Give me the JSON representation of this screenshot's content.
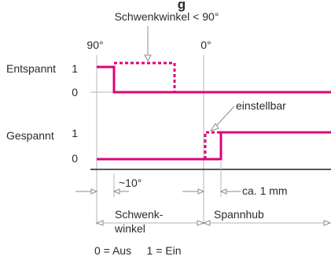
{
  "title_fragment": "g",
  "angle_note": "Schwenkwinkel < 90°",
  "tick_90": "90°",
  "tick_0": "0°",
  "rows": {
    "entspannt": {
      "label": "Entspannt",
      "level_high": "1",
      "level_low": "0"
    },
    "gespannt": {
      "label": "Gespannt",
      "level_high": "1",
      "level_low": "0"
    }
  },
  "adjustable_label": "einstellbar",
  "approx_angle_label": "~10°",
  "stroke_label": "ca. 1 mm",
  "swivel_label_1": "Schwenk-",
  "swivel_label_2": "winkel",
  "clamp_label": "Spannhub",
  "legend": "0 = Aus     1 = Ein",
  "colors": {
    "signal": "#e0007a",
    "reference": "#b5b5b5",
    "text": "#2b2b2b"
  }
}
